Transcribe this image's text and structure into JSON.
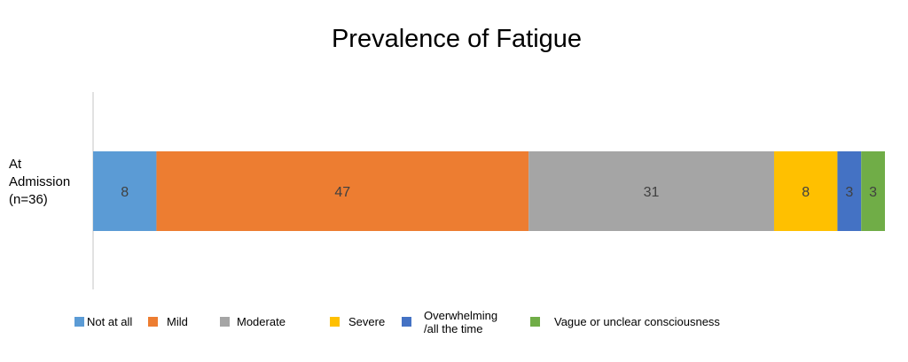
{
  "chart_data": {
    "type": "bar",
    "orientation": "horizontal",
    "stacked": true,
    "title": "Prevalence of Fatigue",
    "categories": [
      [
        "At",
        "Admission",
        "(n=36)"
      ]
    ],
    "series": [
      {
        "name": "Not at all",
        "values": [
          8
        ],
        "color": "#5B9BD5"
      },
      {
        "name": "Mild",
        "values": [
          47
        ],
        "color": "#ED7D31"
      },
      {
        "name": "Moderate",
        "values": [
          31
        ],
        "color": "#A5A5A5"
      },
      {
        "name": "Severe",
        "values": [
          8
        ],
        "color": "#FFC000"
      },
      {
        "name": "Overwhelming /all the time",
        "legend_lines": [
          "Overwhelming",
          "/all the time"
        ],
        "values": [
          3
        ],
        "color": "#4472C4"
      },
      {
        "name": "Vague or unclear consciousness",
        "values": [
          3
        ],
        "color": "#70AD47"
      }
    ],
    "data_labels": true,
    "legend_position": "bottom",
    "grid": false
  }
}
